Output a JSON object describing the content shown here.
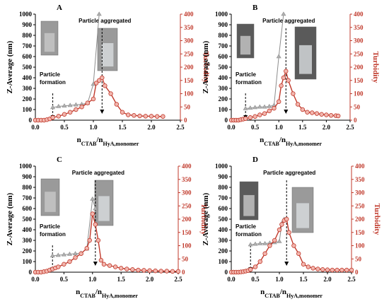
{
  "colors": {
    "zavg_series": "#8c8c8c",
    "turbidity_series": "#c0392b",
    "right_axis": "#c0392b",
    "left_axis": "#000000"
  },
  "axis_text": {
    "xlabel": "n",
    "xlabel_sub1": "CTAB",
    "xlabel_mid": "/n",
    "xlabel_sub2": "HyA,monomer",
    "ylabel_left": "Z-Average (nm)",
    "ylabel_right": "Turbidity",
    "x_ticks": [
      "0.0",
      "0.5",
      "1.0",
      "1.5",
      "2.0",
      "2.5"
    ],
    "y_left_ticks": [
      "0",
      "100",
      "200",
      "300",
      "400",
      "500",
      "600",
      "700",
      "800",
      "900",
      "1000"
    ],
    "y_right_ticks": [
      "0",
      "50",
      "100",
      "150",
      "200",
      "250",
      "300",
      "350",
      "400"
    ]
  },
  "chart_data": [
    {
      "panel": "A",
      "type": "line",
      "xlim": [
        0,
        2.5
      ],
      "ylim_left": [
        0,
        1000
      ],
      "ylim_right": [
        0,
        400
      ],
      "annotations": [
        "Particle formation",
        "Particle aggregated"
      ],
      "particle_formation_x": 0.3,
      "particle_aggregated_x": 1.15,
      "series": [
        {
          "axis": "left",
          "x": [
            0.3,
            0.4,
            0.5,
            0.6,
            0.7,
            0.8,
            0.9,
            1.0,
            1.1
          ],
          "y": [
            120,
            130,
            135,
            140,
            145,
            150,
            160,
            340,
            1000
          ]
        },
        {
          "axis": "right",
          "x": [
            0.0,
            0.05,
            0.1,
            0.15,
            0.2,
            0.25,
            0.3,
            0.4,
            0.5,
            0.6,
            0.7,
            0.8,
            0.9,
            1.0,
            1.05,
            1.1,
            1.15,
            1.2,
            1.3,
            1.4,
            1.5,
            1.6,
            1.7,
            1.8,
            1.9,
            2.0,
            2.1,
            2.2
          ],
          "y": [
            0,
            0,
            0,
            0,
            2,
            5,
            10,
            15,
            22,
            30,
            40,
            50,
            65,
            80,
            140,
            150,
            160,
            130,
            100,
            60,
            30,
            20,
            18,
            16,
            15,
            15,
            14,
            14
          ]
        }
      ]
    },
    {
      "panel": "B",
      "type": "line",
      "xlim": [
        0,
        2.5
      ],
      "ylim_left": [
        0,
        1000
      ],
      "ylim_right": [
        0,
        400
      ],
      "annotations": [
        "Particle formation",
        "Particle aggregated"
      ],
      "particle_formation_x": 0.3,
      "particle_aggregated_x": 1.15,
      "series": [
        {
          "axis": "left",
          "x": [
            0.3,
            0.4,
            0.5,
            0.6,
            0.7,
            0.8,
            0.9,
            1.0,
            1.1
          ],
          "y": [
            110,
            115,
            120,
            125,
            125,
            130,
            140,
            600,
            1000
          ]
        },
        {
          "axis": "right",
          "x": [
            0.0,
            0.05,
            0.1,
            0.15,
            0.2,
            0.25,
            0.3,
            0.4,
            0.5,
            0.6,
            0.7,
            0.8,
            0.9,
            1.0,
            1.05,
            1.1,
            1.15,
            1.2,
            1.3,
            1.4,
            1.5,
            1.6,
            1.7,
            1.8,
            1.9,
            2.0,
            2.1,
            2.2,
            2.25
          ],
          "y": [
            0,
            0,
            0,
            0,
            2,
            4,
            6,
            10,
            14,
            20,
            25,
            35,
            45,
            70,
            130,
            160,
            185,
            150,
            100,
            60,
            40,
            30,
            28,
            25,
            22,
            20,
            18,
            17,
            16
          ]
        }
      ]
    },
    {
      "panel": "C",
      "type": "line",
      "xlim": [
        0,
        2.5
      ],
      "ylim_left": [
        0,
        1000
      ],
      "ylim_right": [
        0,
        400
      ],
      "annotations": [
        "Particle formation",
        "Particle aggregated"
      ],
      "particle_formation_x": 0.3,
      "particle_aggregated_x": 1.05,
      "series": [
        {
          "axis": "left",
          "x": [
            0.3,
            0.4,
            0.5,
            0.6,
            0.7,
            0.8,
            0.9,
            1.0,
            1.05
          ],
          "y": [
            155,
            160,
            165,
            170,
            175,
            180,
            220,
            690,
            600
          ]
        },
        {
          "axis": "right",
          "x": [
            0.0,
            0.05,
            0.1,
            0.15,
            0.2,
            0.25,
            0.3,
            0.35,
            0.4,
            0.5,
            0.6,
            0.7,
            0.8,
            0.9,
            0.95,
            1.0,
            1.05,
            1.1,
            1.15,
            1.2,
            1.3,
            1.4,
            1.5,
            1.6,
            1.7,
            1.8,
            1.9,
            2.0,
            2.1,
            2.2,
            2.3,
            2.4,
            2.5
          ],
          "y": [
            0,
            0,
            0,
            2,
            4,
            8,
            12,
            16,
            20,
            30,
            40,
            55,
            70,
            90,
            120,
            220,
            180,
            120,
            45,
            30,
            25,
            20,
            15,
            12,
            10,
            8,
            7,
            6,
            5,
            4,
            4,
            3,
            3
          ]
        }
      ]
    },
    {
      "panel": "D",
      "type": "line",
      "xlim": [
        0,
        2.5
      ],
      "ylim_left": [
        0,
        1000
      ],
      "ylim_right": [
        0,
        400
      ],
      "annotations": [
        "Particle formation",
        "Particle aggregated"
      ],
      "particle_formation_x": 0.4,
      "particle_aggregated_x": 1.15,
      "series": [
        {
          "axis": "left",
          "x": [
            0.4,
            0.5,
            0.6,
            0.7,
            0.8,
            0.9,
            1.0,
            1.05,
            1.1
          ],
          "y": [
            260,
            265,
            270,
            270,
            275,
            280,
            290,
            460,
            500
          ]
        },
        {
          "axis": "right",
          "x": [
            0.0,
            0.05,
            0.1,
            0.15,
            0.2,
            0.25,
            0.3,
            0.35,
            0.4,
            0.5,
            0.6,
            0.7,
            0.8,
            0.9,
            1.0,
            1.05,
            1.1,
            1.15,
            1.2,
            1.3,
            1.4,
            1.5,
            1.6,
            1.7,
            1.8,
            1.9,
            2.0,
            2.1,
            2.2,
            2.3,
            2.4,
            2.5
          ],
          "y": [
            0,
            0,
            0,
            0,
            1,
            2,
            4,
            6,
            10,
            20,
            40,
            70,
            100,
            120,
            160,
            180,
            195,
            200,
            150,
            100,
            70,
            30,
            20,
            15,
            12,
            10,
            9,
            8,
            8,
            8,
            8,
            8
          ]
        }
      ]
    }
  ]
}
